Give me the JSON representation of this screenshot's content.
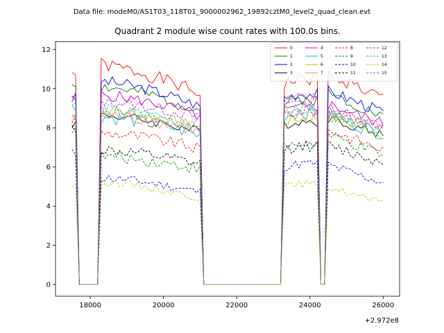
{
  "figure": {
    "suptitle": "Data file: modeM0/AS1T03_118T01_9000002962_19892cztM0_level2_quad_clean.evt",
    "offset_label": "+2.972e8"
  },
  "chart_data": {
    "type": "line",
    "title": "Quadrant 2 module wise count rates with 100.0s bins.",
    "xlabel": "",
    "ylabel": "",
    "x_offset": 297200000,
    "xlim": [
      17050,
      26450
    ],
    "ylim": [
      -0.6,
      12.4
    ],
    "xticks": [
      18000,
      20000,
      22000,
      24000,
      26000
    ],
    "xtick_labels": [
      "18000",
      "20000",
      "22000",
      "24000",
      "26000"
    ],
    "yticks": [
      0,
      2,
      4,
      6,
      8,
      10,
      12
    ],
    "ytick_labels": [
      "0",
      "2",
      "4",
      "6",
      "8",
      "10",
      "12"
    ],
    "grid": false,
    "legend_position": "top-right",
    "legend_columns": 4,
    "segments": [
      {
        "x_start": 17500,
        "x_end": 17600
      },
      {
        "x_start": 17700,
        "x_end": 18200
      },
      {
        "x_start": 18300,
        "x_end": 21000
      },
      {
        "x_start": 21100,
        "x_end": 23200
      },
      {
        "x_start": 23300,
        "x_end": 24200
      },
      {
        "x_start": 24300,
        "x_end": 24400
      },
      {
        "x_start": 24500,
        "x_end": 26000
      }
    ],
    "series": [
      {
        "name": "0",
        "color": "#ff0000",
        "dashed": false,
        "seed": 1,
        "levels": [
          10.8,
          0,
          10.5,
          0,
          10.3,
          0,
          10.2
        ],
        "noise": 0.35,
        "trend": [
          0.6,
          -0.8,
          -0.6
        ]
      },
      {
        "name": "1",
        "color": "#008000",
        "dashed": false,
        "seed": 2,
        "levels": [
          10.3,
          0,
          9.5,
          0,
          9.3,
          0,
          9.3
        ],
        "noise": 0.3,
        "trend": [
          0.5,
          -0.6,
          -0.6
        ]
      },
      {
        "name": "2",
        "color": "#0000ff",
        "dashed": false,
        "seed": 3,
        "levels": [
          9.5,
          0,
          9.8,
          0,
          9.6,
          0,
          9.4
        ],
        "noise": 0.3,
        "trend": [
          0.5,
          -0.7,
          -0.5
        ]
      },
      {
        "name": "3",
        "color": "#000000",
        "dashed": false,
        "seed": 4,
        "levels": [
          8.2,
          0,
          8.2,
          0,
          8.2,
          0,
          8.1
        ],
        "noise": 0.25,
        "trend": [
          0.4,
          -0.4,
          -0.4
        ]
      },
      {
        "name": "4",
        "color": "#c000c0",
        "dashed": false,
        "seed": 5,
        "levels": [
          9.4,
          0,
          9.2,
          0,
          8.9,
          0,
          8.8
        ],
        "noise": 0.3,
        "trend": [
          0.4,
          -0.6,
          -0.5
        ]
      },
      {
        "name": "5",
        "color": "#00bfbf",
        "dashed": false,
        "seed": 6,
        "levels": [
          9.0,
          0,
          8.2,
          0,
          8.7,
          0,
          8.3
        ],
        "noise": 0.35,
        "trend": [
          0.3,
          -0.6,
          -0.5
        ]
      },
      {
        "name": "6",
        "color": "#bfbf00",
        "dashed": false,
        "seed": 7,
        "levels": [
          8.7,
          0,
          8.5,
          0,
          8.4,
          0,
          8.3
        ],
        "noise": 0.3,
        "trend": [
          0.3,
          -0.5,
          -0.5
        ]
      },
      {
        "name": "7",
        "color": "#f08080",
        "dashed": false,
        "seed": 8,
        "levels": [
          8.4,
          0,
          8.3,
          0,
          9.4,
          0,
          8.6
        ],
        "noise": 0.35,
        "trend": [
          0.3,
          -0.5,
          -0.5
        ]
      },
      {
        "name": "8",
        "color": "#ff0000",
        "dashed": true,
        "seed": 9,
        "levels": [
          8.4,
          0,
          7.4,
          0,
          8.8,
          0,
          7.6
        ],
        "noise": 0.3,
        "trend": [
          0.3,
          -0.5,
          -0.6
        ]
      },
      {
        "name": "9",
        "color": "#008000",
        "dashed": true,
        "seed": 10,
        "levels": [
          8.0,
          0,
          6.2,
          0,
          7.1,
          0,
          7.3
        ],
        "noise": 0.3,
        "trend": [
          0.3,
          -0.3,
          -0.6
        ]
      },
      {
        "name": "10",
        "color": "#0000ff",
        "dashed": true,
        "seed": 11,
        "levels": [
          6.7,
          0,
          5.1,
          0,
          6.1,
          0,
          5.8
        ],
        "noise": 0.25,
        "trend": [
          0.3,
          -0.4,
          -0.5
        ]
      },
      {
        "name": "11",
        "color": "#000000",
        "dashed": true,
        "seed": 12,
        "levels": [
          8.0,
          0,
          6.5,
          0,
          7.0,
          0,
          6.8
        ],
        "noise": 0.3,
        "trend": [
          0.3,
          -0.4,
          -0.5
        ]
      },
      {
        "name": "12",
        "color": "#c000c0",
        "dashed": true,
        "seed": 13,
        "levels": [
          9.5,
          0,
          9.0,
          0,
          9.3,
          0,
          8.7
        ],
        "noise": 0.3,
        "trend": [
          0.3,
          -0.5,
          -0.5
        ]
      },
      {
        "name": "13",
        "color": "#00bfbf",
        "dashed": true,
        "seed": 14,
        "levels": [
          9.2,
          0,
          8.6,
          0,
          8.9,
          0,
          8.4
        ],
        "noise": 0.3,
        "trend": [
          0.3,
          -0.5,
          -0.5
        ]
      },
      {
        "name": "14",
        "color": "#bfbf00",
        "dashed": true,
        "seed": 15,
        "levels": [
          5.1,
          0,
          4.8,
          0,
          5.0,
          0,
          4.6
        ],
        "noise": 0.2,
        "trend": [
          0.4,
          -0.4,
          -0.4
        ]
      },
      {
        "name": "15",
        "color": "#808080",
        "dashed": true,
        "seed": 16,
        "levels": [
          8.8,
          0,
          8.5,
          0,
          8.8,
          0,
          8.5
        ],
        "noise": 0.3,
        "trend": [
          0.3,
          -0.5,
          -0.5
        ]
      }
    ]
  }
}
